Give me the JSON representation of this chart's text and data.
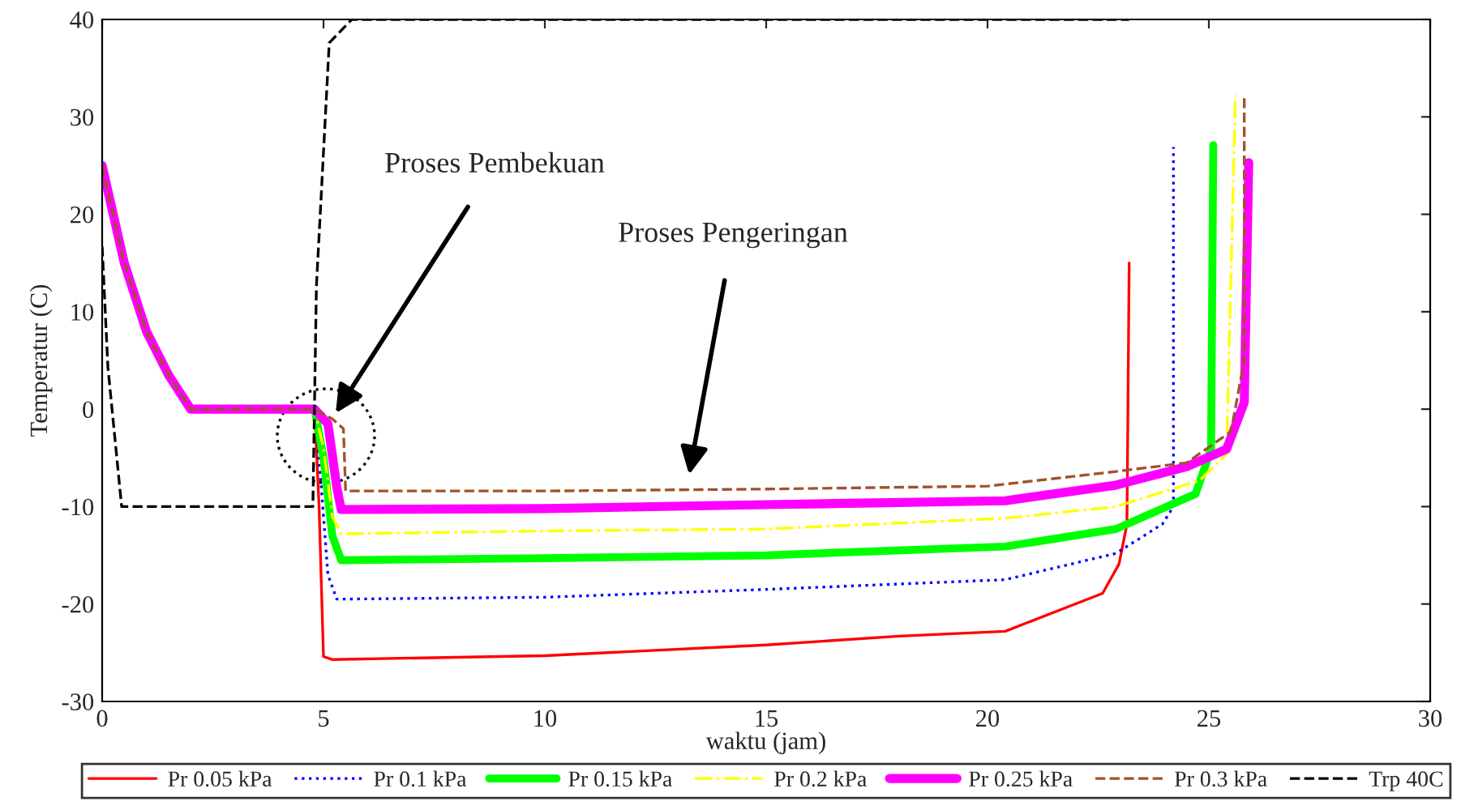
{
  "chart_data": {
    "type": "line",
    "xlabel": "waktu (jam)",
    "ylabel": "Temperatur (C)",
    "xlim": [
      0,
      30
    ],
    "ylim": [
      -30,
      40
    ],
    "xticks": [
      0,
      5,
      10,
      15,
      20,
      25,
      30
    ],
    "yticks": [
      -30,
      -20,
      -10,
      0,
      10,
      20,
      30,
      40
    ],
    "grid": false,
    "legend": "bottom",
    "series": [
      {
        "name": "Pr 0.05 kPa",
        "color": "#ff0000",
        "line_style": "solid",
        "marker": "none",
        "x": [
          2,
          4.8,
          4.9,
          5.0,
          5.2,
          10,
          15,
          18,
          20.4,
          22.6,
          22.97,
          23.15,
          23.2
        ],
        "values": [
          0,
          0,
          -10,
          -25.4,
          -25.7,
          -25.3,
          -24.2,
          -23.3,
          -22.8,
          -18.9,
          -15.9,
          -11.8,
          15
        ]
      },
      {
        "name": "Pr 0.1 kPa",
        "color": "#0000ff",
        "line_style": "dotted",
        "marker": "none",
        "x": [
          2,
          4.8,
          4.95,
          5.1,
          5.3,
          10,
          15,
          20.4,
          22.9,
          23.95,
          24.2,
          24.2
        ],
        "values": [
          0,
          0,
          -8,
          -17,
          -19.5,
          -19.3,
          -18.5,
          -17.5,
          -14.8,
          -11.8,
          -10,
          26.9
        ]
      },
      {
        "name": "Pr 0.15 kPa",
        "color": "#00ff00",
        "line_style": "solid",
        "marker": "circle",
        "x": [
          2,
          4.8,
          5.0,
          5.2,
          5.4,
          10,
          15,
          20.4,
          22.9,
          24.7,
          25.05,
          25.1
        ],
        "values": [
          0,
          0,
          -5,
          -13,
          -15.5,
          -15.3,
          -15,
          -14.1,
          -12.3,
          -8.7,
          -4.1,
          27.1
        ]
      },
      {
        "name": "Pr 0.2 kPa",
        "color": "#ffff00",
        "line_style": "dashdot",
        "marker": "none",
        "x": [
          2,
          4.8,
          5.0,
          5.2,
          5.4,
          10,
          15,
          20.4,
          22.9,
          24.8,
          25.4,
          25.6
        ],
        "values": [
          0,
          0,
          -4,
          -11,
          -12.8,
          -12.5,
          -12.3,
          -11.2,
          -10,
          -7.3,
          -4.6,
          32.2
        ]
      },
      {
        "name": "Pr 0.25 kPa",
        "color": "#ff00ff",
        "line_style": "solid",
        "marker": "square",
        "x": [
          0,
          0.5,
          1,
          1.5,
          2,
          4.8,
          5.1,
          5.3,
          5.4,
          10,
          15,
          20.4,
          22.9,
          24.5,
          25.4,
          25.8,
          25.9
        ],
        "values": [
          25,
          15,
          8,
          3.5,
          0,
          0,
          -1.5,
          -8,
          -10.3,
          -10.2,
          -9.8,
          -9.4,
          -7.8,
          -5.9,
          -4.1,
          0.7,
          25.3
        ]
      },
      {
        "name": "Pr 0.3 kPa",
        "color": "#a0522d",
        "line_style": "dashed",
        "marker": "none",
        "x": [
          0,
          0.5,
          1,
          1.5,
          2,
          4.8,
          5.2,
          5.45,
          5.5,
          10,
          15,
          20,
          22.9,
          24.5,
          25.5,
          25.8,
          25.8
        ],
        "values": [
          25,
          15,
          8,
          3.5,
          0,
          0,
          -1,
          -2,
          -8.4,
          -8.4,
          -8.2,
          -7.9,
          -6.4,
          -5.5,
          -2.3,
          5,
          32.2
        ]
      },
      {
        "name": "Trp 40C",
        "color": "#000000",
        "line_style": "dashed",
        "marker": "none",
        "x": [
          0,
          0.13,
          0.44,
          4.76,
          4.84,
          5.13,
          5.64,
          23.2
        ],
        "values": [
          16.7,
          4.3,
          -10,
          -10,
          12.6,
          37.6,
          40,
          40
        ]
      }
    ],
    "annotations": [
      "Proses Pembekuan",
      "Proses Pengeringan"
    ]
  }
}
